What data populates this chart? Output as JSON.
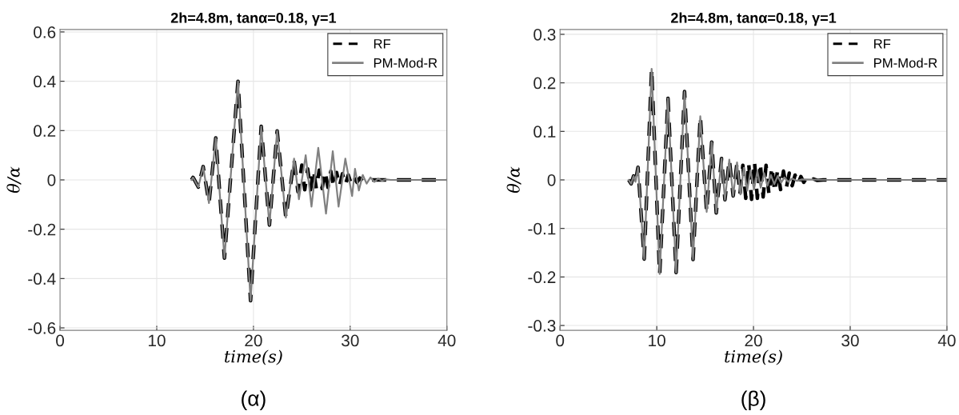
{
  "chart_data": [
    {
      "type": "line",
      "title": "2h=4.8m, tanα=0.18, γ=1",
      "xlabel": "time(s)",
      "ylabel": "θ/α",
      "xlim": [
        0,
        40
      ],
      "ylim": [
        -0.61,
        0.61
      ],
      "xticks": [
        0,
        10,
        20,
        30,
        40
      ],
      "yticks": [
        -0.6,
        -0.4,
        -0.2,
        0,
        0.2,
        0.4,
        0.6
      ],
      "grid": true,
      "legend": "top right",
      "annotations": [
        "(α)"
      ],
      "series": [
        {
          "name": "RF",
          "color": "#000000",
          "line_style": "dashed",
          "x": [
            13.6,
            13.75,
            13.9,
            14.3,
            14.8,
            15.4,
            16.1,
            17.0,
            18.4,
            19.7,
            20.8,
            21.65,
            22.45,
            23.35,
            24.2,
            24.6,
            25.0,
            25.3,
            25.6,
            25.9,
            26.2,
            26.5,
            26.8,
            27.1,
            27.4,
            27.7,
            28.0,
            28.3,
            28.6,
            28.9,
            29.2,
            29.5,
            29.8,
            30.1,
            30.4,
            30.7,
            31.0,
            31.3,
            31.6,
            32.0,
            40
          ],
          "values": [
            0,
            0.01,
            0,
            -0.029,
            0.054,
            -0.094,
            0.17,
            -0.317,
            0.4,
            -0.49,
            0.217,
            -0.183,
            0.199,
            -0.153,
            0.08,
            -0.048,
            0.06,
            -0.04,
            0.045,
            -0.04,
            0.04,
            -0.035,
            0.04,
            -0.035,
            0.035,
            -0.03,
            0.035,
            -0.03,
            0.03,
            -0.025,
            0.025,
            -0.02,
            0.02,
            -0.015,
            0.012,
            -0.01,
            0.008,
            -0.005,
            0.004,
            0,
            0
          ]
        },
        {
          "name": "PM-Mod-R",
          "color": "#808080",
          "line_style": "solid",
          "x": [
            13.6,
            13.75,
            13.9,
            14.3,
            14.8,
            15.4,
            16.1,
            17.0,
            18.4,
            19.7,
            20.8,
            21.65,
            22.45,
            23.35,
            24.2,
            24.7,
            25.4,
            26.0,
            26.7,
            27.5,
            28.2,
            28.8,
            29.5,
            30.2,
            30.5,
            30.9,
            31.3,
            31.7,
            32.1,
            32.5,
            32.9,
            33.3,
            33.7,
            34.2,
            40
          ],
          "values": [
            0,
            0.01,
            0,
            -0.029,
            0.054,
            -0.094,
            0.17,
            -0.317,
            0.4,
            -0.49,
            0.217,
            -0.183,
            0.199,
            -0.153,
            0.086,
            -0.078,
            0.1,
            -0.108,
            0.13,
            -0.137,
            0.116,
            -0.108,
            0.086,
            -0.065,
            0.045,
            -0.043,
            0.02,
            -0.015,
            0.01,
            -0.008,
            0.005,
            -0.003,
            0.002,
            0,
            0
          ]
        }
      ]
    },
    {
      "type": "line",
      "title": "2h=4.8m, tanα=0.18, γ=1",
      "xlabel": "time(s)",
      "ylabel": "θ/α",
      "xlim": [
        0,
        40
      ],
      "ylim": [
        -0.31,
        0.31
      ],
      "xticks": [
        0,
        10,
        20,
        30,
        40
      ],
      "yticks": [
        -0.3,
        -0.2,
        -0.1,
        0,
        0.1,
        0.2,
        0.3
      ],
      "grid": true,
      "legend": "top right",
      "annotations": [
        "(β)"
      ],
      "series": [
        {
          "name": "RF",
          "color": "#000000",
          "line_style": "dashed",
          "x": [
            7.1,
            7.35,
            7.6,
            7.8,
            8.06,
            8.7,
            9.47,
            10.3,
            11.16,
            12.0,
            12.87,
            13.75,
            14.5,
            15.16,
            15.68,
            16.15,
            16.7,
            17.05,
            17.5,
            17.9,
            18.3,
            18.6,
            18.9,
            19.2,
            19.5,
            19.8,
            20.1,
            20.4,
            20.7,
            21.0,
            21.3,
            21.6,
            21.9,
            22.2,
            22.5,
            22.8,
            23.1,
            23.4,
            23.7,
            24.0,
            24.3,
            24.6,
            24.9,
            25.2,
            25.5,
            25.8,
            26.2,
            26.6,
            27.2,
            40
          ],
          "values": [
            0,
            -0.008,
            0.008,
            -0.004,
            0.026,
            -0.163,
            0.229,
            -0.194,
            0.168,
            -0.191,
            0.182,
            -0.164,
            0.131,
            -0.066,
            0.078,
            -0.068,
            0.044,
            -0.041,
            0.042,
            -0.033,
            0.036,
            -0.03,
            0.03,
            -0.038,
            0.035,
            -0.04,
            0.038,
            -0.038,
            0.035,
            -0.035,
            0.03,
            -0.03,
            0.027,
            -0.025,
            0.022,
            -0.02,
            0.018,
            -0.016,
            0.014,
            -0.012,
            0.01,
            -0.008,
            0.007,
            -0.005,
            0.004,
            -0.003,
            0.002,
            -0.001,
            0,
            0
          ]
        },
        {
          "name": "PM-Mod-R",
          "color": "#808080",
          "line_style": "solid",
          "x": [
            7.1,
            7.35,
            7.6,
            7.8,
            8.06,
            8.7,
            9.47,
            10.3,
            11.16,
            12.0,
            12.87,
            13.75,
            14.5,
            15.16,
            15.68,
            16.15,
            16.7,
            17.05,
            17.5,
            17.9,
            18.3,
            18.65,
            19.0,
            19.35,
            19.7,
            20.05,
            20.4,
            20.75,
            21.1,
            21.45,
            21.8,
            22.15,
            22.5,
            22.85,
            23.2,
            23.6,
            24.0,
            24.5,
            25.0,
            27.2,
            40
          ],
          "values": [
            0,
            -0.008,
            0.008,
            -0.004,
            0.026,
            -0.163,
            0.229,
            -0.194,
            0.168,
            -0.191,
            0.182,
            -0.164,
            0.131,
            -0.066,
            0.078,
            -0.068,
            0.044,
            -0.041,
            0.042,
            -0.033,
            0.036,
            -0.03,
            0.025,
            -0.022,
            0.02,
            -0.02,
            0.018,
            -0.016,
            0.014,
            -0.012,
            0.01,
            -0.009,
            0.008,
            -0.006,
            0.005,
            -0.004,
            0.003,
            -0.002,
            0.001,
            0,
            0
          ]
        }
      ]
    }
  ]
}
